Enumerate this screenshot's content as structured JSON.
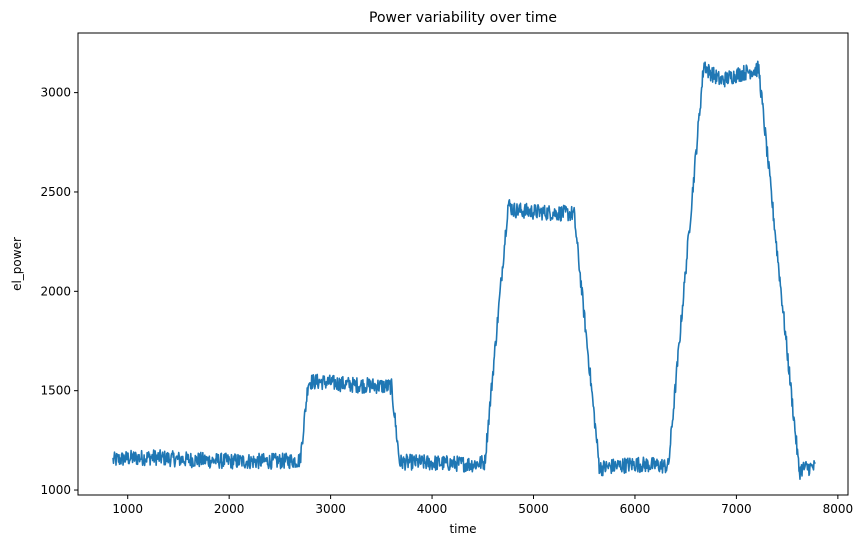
{
  "chart_data": {
    "type": "line",
    "title": "Power variability over time",
    "xlabel": "time",
    "ylabel": "el_power",
    "xlim": [
      510,
      8100
    ],
    "ylim": [
      975,
      3300
    ],
    "xticks": [
      1000,
      2000,
      3000,
      4000,
      5000,
      6000,
      7000,
      8000
    ],
    "yticks": [
      1000,
      1500,
      2000,
      2500,
      3000
    ],
    "grid": false,
    "series": [
      {
        "name": "",
        "color": "#1f77b4",
        "band_halfwidth": 40,
        "x": [
          855,
          1000,
          1250,
          1500,
          1750,
          2000,
          2250,
          2500,
          2700,
          2780,
          2900,
          3200,
          3450,
          3600,
          3680,
          3800,
          4100,
          4400,
          4520,
          4750,
          4800,
          5000,
          5200,
          5400,
          5650,
          5800,
          6000,
          6200,
          6330,
          6680,
          6720,
          6850,
          7000,
          7220,
          7620,
          7650,
          7780
        ],
        "y": [
          1150,
          1160,
          1165,
          1155,
          1150,
          1145,
          1145,
          1145,
          1150,
          1545,
          1545,
          1530,
          1525,
          1520,
          1140,
          1140,
          1135,
          1130,
          1140,
          2440,
          2410,
          2400,
          2395,
          2390,
          1110,
          1120,
          1130,
          1125,
          1120,
          3150,
          3110,
          3060,
          3090,
          3120,
          1090,
          1110,
          1115
        ]
      }
    ]
  }
}
